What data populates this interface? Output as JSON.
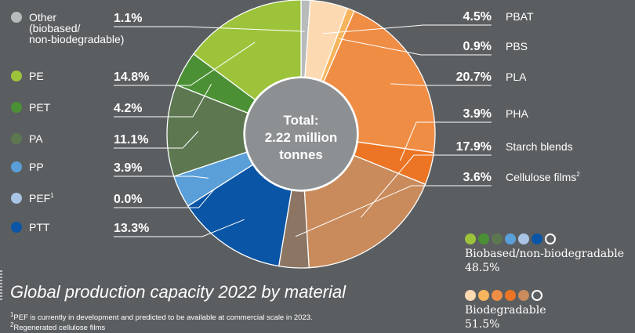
{
  "chart_data": {
    "type": "donut",
    "center_text": [
      "Total:",
      "2.22 million",
      "tonnes"
    ],
    "slices": [
      {
        "name": "Other (biobased/ non-biodegradable)",
        "label_lines": [
          "Other",
          "(biobased/",
          "non-biodegradable)"
        ],
        "value": 1.1,
        "value_label": "1.1%",
        "color": "#b8bbbc",
        "group": "biobased"
      },
      {
        "name": "PBAT",
        "value": 4.5,
        "value_label": "4.5%",
        "color": "#fcd9b1",
        "group": "biodegradable"
      },
      {
        "name": "PBS",
        "value": 0.9,
        "value_label": "0.9%",
        "color": "#f6b45c",
        "group": "biodegradable"
      },
      {
        "name": "PLA",
        "value": 20.7,
        "value_label": "20.7%",
        "color": "#ef8d45",
        "group": "biodegradable"
      },
      {
        "name": "PHA",
        "value": 3.9,
        "value_label": "3.9%",
        "color": "#eb7524",
        "group": "biodegradable"
      },
      {
        "name": "Starch blends",
        "value": 17.9,
        "value_label": "17.9%",
        "color": "#c98b5b",
        "group": "biodegradable"
      },
      {
        "name": "Cellulose films",
        "value": 3.6,
        "value_label": "3.6%",
        "sup": "2",
        "color": "#8d7564",
        "group": "biodegradable"
      },
      {
        "name": "PTT",
        "value": 13.3,
        "value_label": "13.3%",
        "color": "#0a55a5",
        "group": "biobased"
      },
      {
        "name": "PEF",
        "value": 0.0,
        "value_label": "0.0%",
        "sup": "1",
        "color": "#aac4e5",
        "group": "biobased"
      },
      {
        "name": "PP",
        "value": 3.9,
        "value_label": "3.9%",
        "color": "#5a9fd8",
        "group": "biobased"
      },
      {
        "name": "PA",
        "value": 11.1,
        "value_label": "11.1%",
        "color": "#5d7851",
        "group": "biobased"
      },
      {
        "name": "PET",
        "value": 4.2,
        "value_label": "4.2%",
        "color": "#4b9035",
        "group": "biobased"
      },
      {
        "name": "PE",
        "value": 14.8,
        "value_label": "14.8%",
        "color": "#9dc33b",
        "group": "biobased"
      }
    ],
    "left_legend_order": [
      "Other (biobased/ non-biodegradable)",
      "PE",
      "PET",
      "PA",
      "PP",
      "PEF",
      "PTT"
    ],
    "right_legend_order": [
      "PBAT",
      "PBS",
      "PLA",
      "PHA",
      "Starch blends",
      "Cellulose films"
    ],
    "groups": [
      {
        "label": "Biobased/non-biodegradable",
        "value": 48.5,
        "value_label": "48.5%",
        "dot_colors": [
          "#9dc33b",
          "#4b9035",
          "#5d7851",
          "#5a9fd8",
          "#aac4e5",
          "#0a55a5",
          "#b8bbbc"
        ],
        "hollow_last": true
      },
      {
        "label": "Biodegradable",
        "value": 51.5,
        "value_label": "51.5%",
        "dot_colors": [
          "#fcd9b1",
          "#f6b45c",
          "#ef8d45",
          "#eb7524",
          "#c98b5b",
          "#8d7564"
        ],
        "hollow_last": true
      }
    ],
    "title": "Global production capacity 2022 by material",
    "footnotes": [
      "PEF is currently in development and predicted to be available at commercial scale in 2023.",
      "Regenerated cellulose films"
    ],
    "footnote_marks": [
      "1",
      "2"
    ]
  },
  "colors": {
    "background": "#5a5e61",
    "text": "#ffffff",
    "center": "#8c9093"
  }
}
